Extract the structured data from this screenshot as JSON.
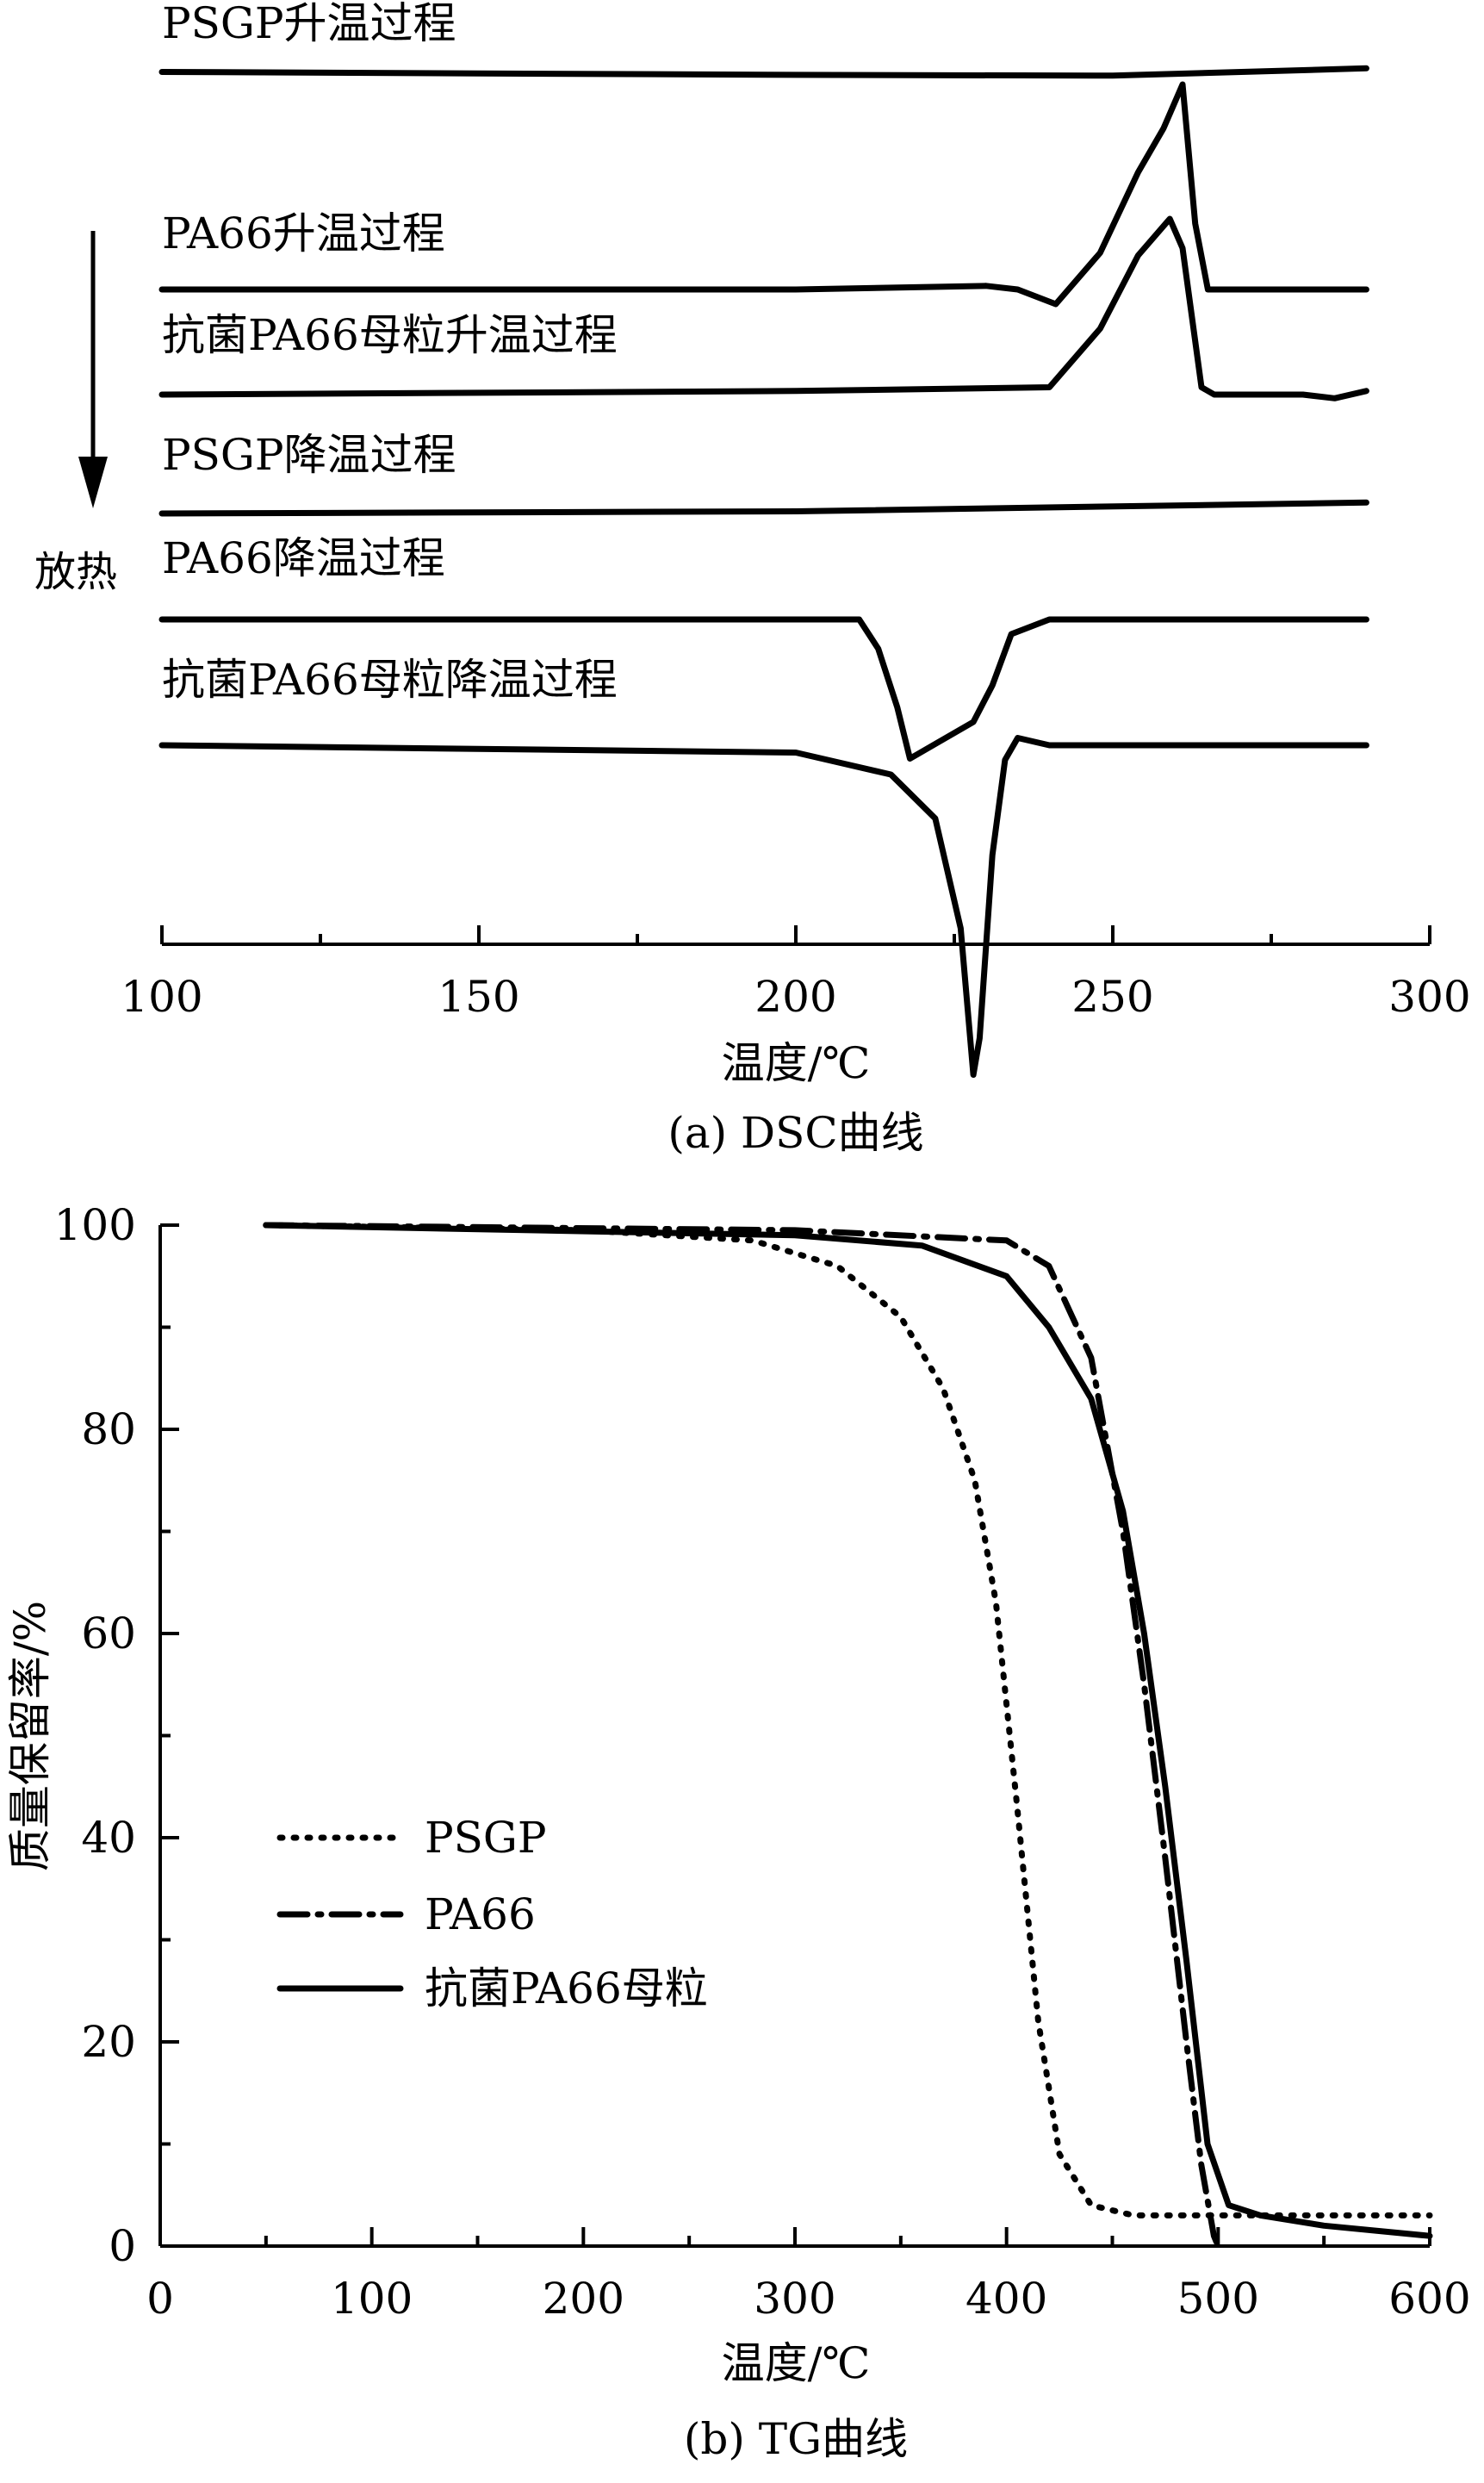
{
  "chart_data": [
    {
      "type": "line",
      "caption": "(a) DSC曲线",
      "xlabel": "温度/℃",
      "ylabel": "",
      "xlim": [
        100,
        300
      ],
      "x_ticks": [
        "100",
        "150",
        "200",
        "250",
        "300"
      ],
      "y_ticks_shown": false,
      "annotation": "放热",
      "annotation_arrow": "down",
      "series": [
        {
          "name": "PSGP升温过程",
          "x": [
            100,
            150,
            200,
            250,
            290
          ],
          "y": [
            1.0,
            0.8,
            0.6,
            0.5,
            1.5
          ]
        },
        {
          "name": "PA66升温过程",
          "x": [
            100,
            200,
            230,
            235,
            241,
            248,
            254,
            258,
            261,
            263,
            265,
            290
          ],
          "y": [
            0,
            0,
            0.5,
            0,
            -2,
            5,
            16,
            22,
            28,
            9,
            0,
            0
          ]
        },
        {
          "name": "抗菌PA66母粒升温过程",
          "x": [
            100,
            200,
            240,
            248,
            254,
            259,
            261,
            264,
            266,
            280,
            285,
            290
          ],
          "y": [
            0,
            0.5,
            1,
            9,
            19,
            24,
            20,
            1,
            0,
            0,
            -0.5,
            0.5
          ]
        },
        {
          "name": "PSGP降温过程",
          "x": [
            100,
            200,
            290
          ],
          "y": [
            0,
            0.3,
            1.5
          ]
        },
        {
          "name": "PA66降温过程",
          "x": [
            100,
            210,
            213,
            216,
            218,
            222,
            228,
            231,
            234,
            240,
            290
          ],
          "y": [
            0,
            0,
            -4,
            -12,
            -19,
            -17,
            -14,
            -9,
            -2,
            0,
            0
          ]
        },
        {
          "name": "抗菌PA66母粒降温过程",
          "x": [
            100,
            200,
            215,
            222,
            226,
            228,
            229,
            231,
            233,
            235,
            240,
            260,
            290
          ],
          "y": [
            0,
            -1,
            -4,
            -10,
            -25,
            -45,
            -40,
            -15,
            -2,
            1,
            0,
            0,
            0
          ]
        }
      ]
    },
    {
      "type": "line",
      "caption": "(b) TG曲线",
      "xlabel": "温度/℃",
      "ylabel": "质量保留率/%",
      "xlim": [
        0,
        600
      ],
      "ylim": [
        0,
        100
      ],
      "x_ticks": [
        "0",
        "100",
        "200",
        "300",
        "400",
        "500",
        "600"
      ],
      "y_ticks": [
        "0",
        "20",
        "40",
        "60",
        "80",
        "100"
      ],
      "legend_position": "left-middle",
      "series": [
        {
          "name": "PSGP",
          "style": "dotted",
          "x": [
            50,
            200,
            280,
            320,
            350,
            370,
            385,
            395,
            405,
            415,
            425,
            440,
            460,
            500,
            600
          ],
          "y": [
            100,
            99.5,
            98.5,
            96,
            91,
            84,
            75,
            63,
            43,
            22,
            9,
            4,
            3,
            3,
            3
          ]
        },
        {
          "name": "PA66",
          "style": "dash-dot",
          "x": [
            50,
            300,
            400,
            420,
            440,
            455,
            465,
            475,
            485,
            492,
            498,
            500
          ],
          "y": [
            100,
            99.5,
            98.5,
            96,
            87,
            70,
            55,
            38,
            20,
            8,
            1,
            0
          ]
        },
        {
          "name": "抗菌PA66母粒",
          "style": "solid",
          "x": [
            50,
            300,
            360,
            400,
            420,
            440,
            455,
            465,
            475,
            485,
            495,
            505,
            520,
            550,
            600
          ],
          "y": [
            100,
            99,
            98,
            95,
            90,
            83,
            72,
            60,
            45,
            28,
            10,
            4,
            3,
            2,
            1
          ]
        }
      ]
    }
  ]
}
